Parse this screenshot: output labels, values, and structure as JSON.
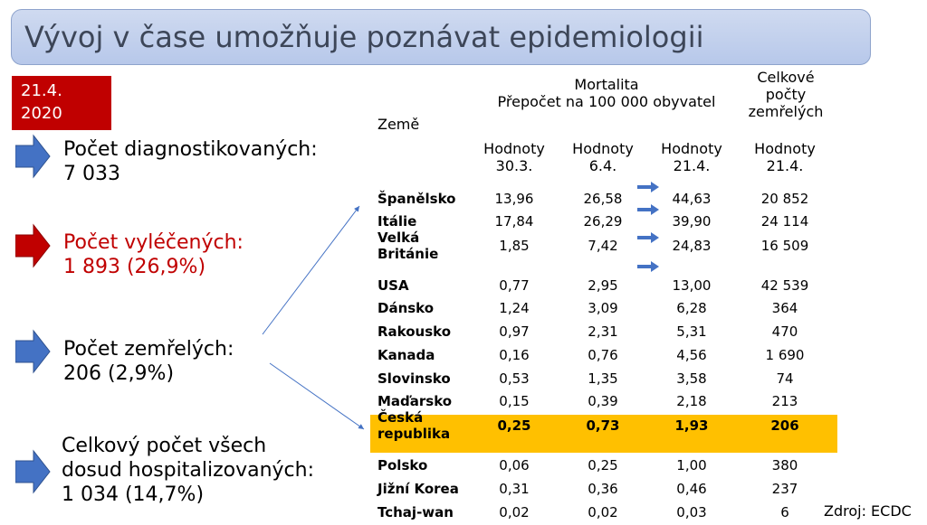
{
  "title": "Vývoj v čase umožňuje poznávat epidemiologii",
  "date_badge": {
    "line1": "21.4.",
    "line2": "2020"
  },
  "stats": [
    {
      "label": "Počet diagnostikovaných:",
      "value": "7 033"
    },
    {
      "label": "Počet vyléčených:",
      "value": "1 893 (26,9%)"
    },
    {
      "label": "Počet zemřelých:",
      "value": "206 (2,9%)"
    },
    {
      "label_line1": "Celkový počet všech",
      "label_line2": "dosud hospitalizovaných:",
      "value": "1 034 (14,7%)"
    }
  ],
  "table": {
    "header_country": "Země",
    "header_mortality": {
      "line1": "Mortalita",
      "line2": "Přepočet na 100 000 obyvatel"
    },
    "header_totals": {
      "line1": "Celkové",
      "line2": "počty",
      "line3": "zemřelých"
    },
    "columns": [
      {
        "line1": "Hodnoty",
        "line2": "30.3."
      },
      {
        "line1": "Hodnoty",
        "line2": "6.4."
      },
      {
        "line1": "Hodnoty",
        "line2": "21.4."
      },
      {
        "line1": "Hodnoty",
        "line2": "21.4."
      }
    ],
    "rows": [
      {
        "country": "Španělsko",
        "v1": "13,96",
        "v2": "26,58",
        "v3": "44,63",
        "total": "20 852"
      },
      {
        "country": "Itálie",
        "v1": "17,84",
        "v2": "26,29",
        "v3": "39,90",
        "total": "24 114"
      },
      {
        "country": "Velká\nBritánie",
        "v1": "1,85",
        "v2": "7,42",
        "v3": "24,83",
        "total": "16 509"
      },
      {
        "country": "USA",
        "v1": "0,77",
        "v2": "2,95",
        "v3": "13,00",
        "total": "42 539"
      },
      {
        "country": "Dánsko",
        "v1": "1,24",
        "v2": "3,09",
        "v3": "6,28",
        "total": "364"
      },
      {
        "country": "Rakousko",
        "v1": "0,97",
        "v2": "2,31",
        "v3": "5,31",
        "total": "470"
      },
      {
        "country": "Kanada",
        "v1": "0,16",
        "v2": "0,76",
        "v3": "4,56",
        "total": "1 690"
      },
      {
        "country": "Slovinsko",
        "v1": "0,53",
        "v2": "1,35",
        "v3": "3,58",
        "total": "74"
      },
      {
        "country": "Maďarsko",
        "v1": "0,15",
        "v2": "0,39",
        "v3": "2,18",
        "total": "213"
      },
      {
        "country": "Česká\nrepublika",
        "v1": "0,25",
        "v2": "0,73",
        "v3": "1,93",
        "total": "206"
      },
      {
        "country": "Polsko",
        "v1": "0,06",
        "v2": "0,25",
        "v3": "1,00",
        "total": "380"
      },
      {
        "country": "Jižní Korea",
        "v1": "0,31",
        "v2": "0,36",
        "v3": "0,46",
        "total": "237"
      },
      {
        "country": "Tchaj-wan",
        "v1": "0,02",
        "v2": "0,02",
        "v3": "0,03",
        "total": "6"
      }
    ]
  },
  "source": "Zdroj: ECDC",
  "colors": {
    "title_bg": "#c5d3ee",
    "accent_red": "#c00000",
    "arrow_blue": "#4472c4",
    "highlight": "#ffc000"
  }
}
